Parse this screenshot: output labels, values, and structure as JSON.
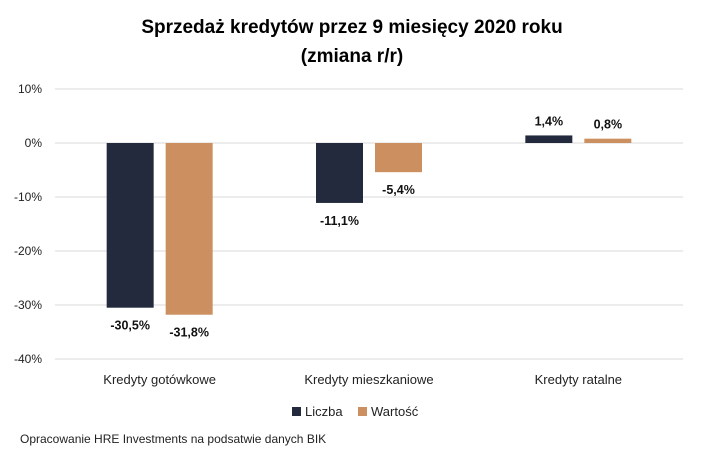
{
  "chart_data": {
    "type": "bar",
    "title": "Sprzedaż kredytów przez 9 miesięcy 2020 roku",
    "subtitle": "(zmiana r/r)",
    "categories": [
      "Kredyty gotówkowe",
      "Kredyty mieszkaniowe",
      "Kredyty ratalne"
    ],
    "series": [
      {
        "name": "Liczba",
        "color": "#232a3d",
        "values": [
          -30.5,
          -11.1,
          1.4
        ],
        "labels": [
          "-30,5%",
          "-11,1%",
          "1,4%"
        ]
      },
      {
        "name": "Wartość",
        "color": "#cc8f5f",
        "values": [
          -31.8,
          -5.4,
          0.8
        ],
        "labels": [
          "-31,8%",
          "-5,4%",
          "0,8%"
        ]
      }
    ],
    "ylim": [
      -40,
      10
    ],
    "yticks": [
      10,
      0,
      -10,
      -20,
      -30,
      -40
    ],
    "ytick_labels": [
      "10%",
      "0%",
      "-10%",
      "-20%",
      "-30%",
      "-40%"
    ],
    "grid": true,
    "legend": "bottom"
  },
  "footer": {
    "source": "Opracowanie HRE Investments na podsatwie danych BIK"
  }
}
